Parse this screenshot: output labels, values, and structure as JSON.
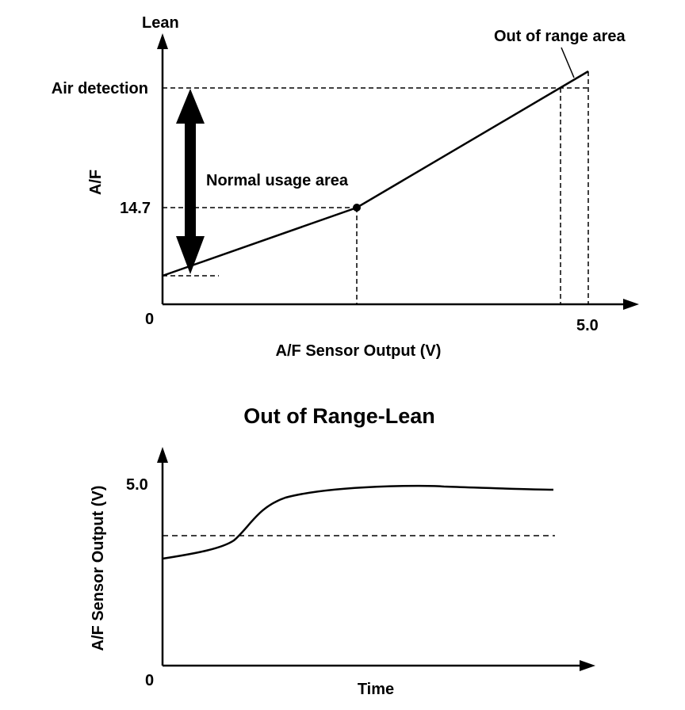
{
  "top_chart": {
    "y_top_label": "Lean",
    "y_axis_label": "A/F",
    "x_axis_label": "A/F Sensor Output (V)",
    "origin_label": "0",
    "x_tick_label": "5.0",
    "air_detection_label": "Air detection",
    "af_value_label": "14.7",
    "normal_usage_label": "Normal usage area",
    "out_of_range_label": "Out of range area"
  },
  "bottom_chart": {
    "title": "Out of Range-Lean",
    "y_axis_label": "A/F Sensor Output (V)",
    "x_axis_label": "Time",
    "origin_label": "0",
    "y_tick_label": "5.0"
  },
  "colors": {
    "line": "#000000",
    "background": "#ffffff"
  }
}
